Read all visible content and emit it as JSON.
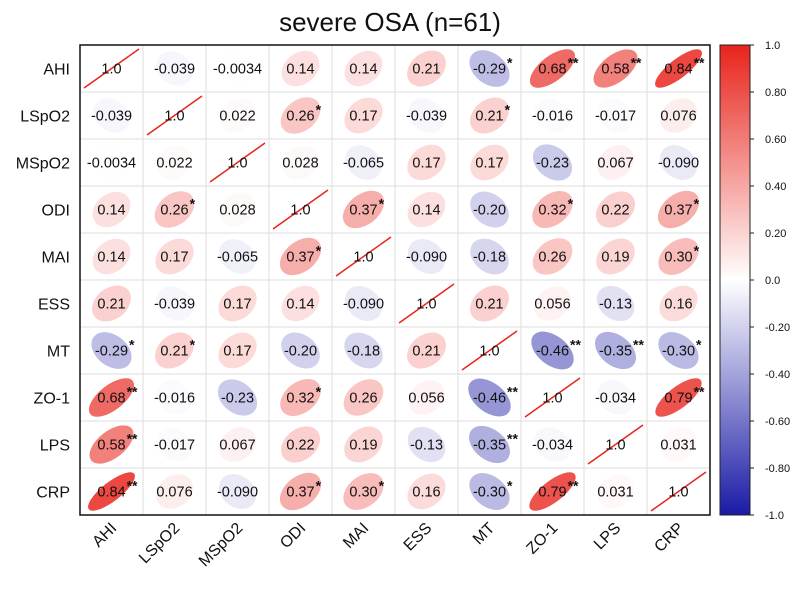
{
  "chart_data": {
    "type": "heatmap",
    "subtype": "correlation-ellipse-matrix",
    "title": "severe OSA (n=61)",
    "variables": [
      "AHI",
      "LSpO2",
      "MSpO2",
      "ODI",
      "MAI",
      "ESS",
      "MT",
      "ZO-1",
      "LPS",
      "CRP"
    ],
    "values": [
      [
        1.0,
        -0.039,
        -0.0034,
        0.14,
        0.14,
        0.21,
        -0.29,
        0.68,
        0.58,
        0.84
      ],
      [
        -0.039,
        1.0,
        0.022,
        0.26,
        0.17,
        -0.039,
        0.21,
        -0.016,
        -0.017,
        0.076
      ],
      [
        -0.0034,
        0.022,
        1.0,
        0.028,
        -0.065,
        0.17,
        0.17,
        -0.23,
        0.067,
        -0.09
      ],
      [
        0.14,
        0.26,
        0.028,
        1.0,
        0.37,
        0.14,
        -0.2,
        0.32,
        0.22,
        0.37
      ],
      [
        0.14,
        0.17,
        -0.065,
        0.37,
        1.0,
        -0.09,
        -0.18,
        0.26,
        0.19,
        0.3
      ],
      [
        0.21,
        -0.039,
        0.17,
        0.14,
        -0.09,
        1.0,
        0.21,
        0.056,
        -0.13,
        0.16
      ],
      [
        -0.29,
        0.21,
        0.17,
        -0.2,
        -0.18,
        0.21,
        1.0,
        -0.46,
        -0.35,
        -0.3
      ],
      [
        0.68,
        -0.016,
        -0.23,
        0.32,
        0.26,
        0.056,
        -0.46,
        1.0,
        -0.034,
        0.79
      ],
      [
        0.58,
        -0.017,
        0.067,
        0.22,
        0.19,
        -0.13,
        -0.35,
        -0.034,
        1.0,
        0.031
      ],
      [
        0.84,
        0.076,
        -0.09,
        0.37,
        0.3,
        0.16,
        -0.3,
        0.79,
        0.031,
        1.0
      ]
    ],
    "labels": [
      [
        "1.0",
        "-0.039",
        "-0.0034",
        "0.14",
        "0.14",
        "0.21",
        "-0.29",
        "0.68",
        "0.58",
        "0.84"
      ],
      [
        "-0.039",
        "1.0",
        "0.022",
        "0.26",
        "0.17",
        "-0.039",
        "0.21",
        "-0.016",
        "-0.017",
        "0.076"
      ],
      [
        "-0.0034",
        "0.022",
        "1.0",
        "0.028",
        "-0.065",
        "0.17",
        "0.17",
        "-0.23",
        "0.067",
        "-0.090"
      ],
      [
        "0.14",
        "0.26",
        "0.028",
        "1.0",
        "0.37",
        "0.14",
        "-0.20",
        "0.32",
        "0.22",
        "0.37"
      ],
      [
        "0.14",
        "0.17",
        "-0.065",
        "0.37",
        "1.0",
        "-0.090",
        "-0.18",
        "0.26",
        "0.19",
        "0.30"
      ],
      [
        "0.21",
        "-0.039",
        "0.17",
        "0.14",
        "-0.090",
        "1.0",
        "0.21",
        "0.056",
        "-0.13",
        "0.16"
      ],
      [
        "-0.29",
        "0.21",
        "0.17",
        "-0.20",
        "-0.18",
        "0.21",
        "1.0",
        "-0.46",
        "-0.35",
        "-0.30"
      ],
      [
        "0.68",
        "-0.016",
        "-0.23",
        "0.32",
        "0.26",
        "0.056",
        "-0.46",
        "1.0",
        "-0.034",
        "0.79"
      ],
      [
        "0.58",
        "-0.017",
        "0.067",
        "0.22",
        "0.19",
        "-0.13",
        "-0.35",
        "-0.034",
        "1.0",
        "0.031"
      ],
      [
        "0.84",
        "0.076",
        "-0.090",
        "0.37",
        "0.30",
        "0.16",
        "-0.30",
        "0.79",
        "0.031",
        "1.0"
      ]
    ],
    "significance": [
      [
        "",
        "",
        "",
        "",
        "",
        "",
        "*",
        "**",
        "**",
        "**"
      ],
      [
        "",
        "",
        "",
        "*",
        "",
        "",
        "*",
        "",
        "",
        ""
      ],
      [
        "",
        "",
        "",
        "",
        "",
        "",
        "",
        "",
        "",
        ""
      ],
      [
        "",
        "*",
        "",
        "",
        "*",
        "",
        "",
        "*",
        "",
        "*"
      ],
      [
        "",
        "",
        "",
        "*",
        "",
        "",
        "",
        "",
        "",
        "*"
      ],
      [
        "",
        "",
        "",
        "",
        "",
        "",
        "",
        "",
        "",
        ""
      ],
      [
        "*",
        "*",
        "",
        "",
        "",
        "",
        "",
        "**",
        "**",
        "*"
      ],
      [
        "**",
        "",
        "",
        "*",
        "",
        "",
        "**",
        "",
        "",
        "**"
      ],
      [
        "**",
        "",
        "",
        "",
        "",
        "",
        "**",
        "",
        "",
        ""
      ],
      [
        "**",
        "",
        "",
        "*",
        "*",
        "",
        "*",
        "**",
        "",
        ""
      ]
    ],
    "colorbar": {
      "range": [
        -1.0,
        1.0
      ],
      "ticks": [
        "1.0",
        "0.80",
        "0.60",
        "0.40",
        "0.20",
        "0.0",
        "-0.20",
        "-0.40",
        "-0.60",
        "-0.80",
        "-1.0"
      ],
      "tick_values": [
        1.0,
        0.8,
        0.6,
        0.4,
        0.2,
        0.0,
        -0.2,
        -0.4,
        -0.6,
        -0.8,
        -1.0
      ],
      "colors": {
        "negative": "#1a1aa6",
        "zero": "#ffffff",
        "positive": "#e8241c"
      }
    },
    "diagonal_line_color": "#e8241c",
    "legend": "right"
  }
}
